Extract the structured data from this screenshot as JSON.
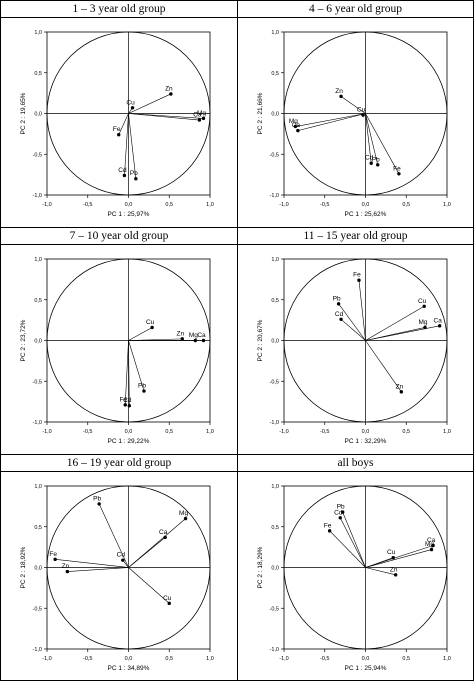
{
  "chart_data": [
    {
      "type": "scatter",
      "title": "1 – 3 year old group",
      "xlabel": "PC 1 : 25,97%",
      "ylabel": "PC 2 : 19,65%",
      "xlim": [
        -1.0,
        1.0
      ],
      "ylim": [
        -1.0,
        1.0
      ],
      "xticks": [
        "-1,0",
        "-0,5",
        "0,0",
        "0,5",
        "1,0"
      ],
      "yticks": [
        "1,0",
        "0,5",
        "0,0",
        "-0,5",
        "-1,0"
      ],
      "unit_circle": true,
      "points": [
        {
          "label": "Cu",
          "x": 0.05,
          "y": 0.07
        },
        {
          "label": "Zn",
          "x": 0.52,
          "y": 0.24
        },
        {
          "label": "Mg",
          "x": 0.92,
          "y": -0.06
        },
        {
          "label": "Ca",
          "x": 0.87,
          "y": -0.08
        },
        {
          "label": "Fe",
          "x": -0.12,
          "y": -0.26
        },
        {
          "label": "Cd",
          "x": -0.05,
          "y": -0.76
        },
        {
          "label": "Pb",
          "x": 0.09,
          "y": -0.8
        }
      ]
    },
    {
      "type": "scatter",
      "title": "4 – 6 year old group",
      "xlabel": "PC 1 : 25,62%",
      "ylabel": "PC 2 : 21,66%",
      "xlim": [
        -1.0,
        1.0
      ],
      "ylim": [
        -1.0,
        1.0
      ],
      "xticks": [
        "-1,0",
        "-0,5",
        "0,0",
        "0,5",
        "1,0"
      ],
      "yticks": [
        "1,0",
        "0,5",
        "0,0",
        "-0,5",
        "-1,0"
      ],
      "unit_circle": true,
      "points": [
        {
          "label": "Zn",
          "x": -0.3,
          "y": 0.21
        },
        {
          "label": "Cu",
          "x": -0.03,
          "y": -0.02
        },
        {
          "label": "Mg",
          "x": -0.86,
          "y": -0.16
        },
        {
          "label": "Ca",
          "x": -0.83,
          "y": -0.21
        },
        {
          "label": "Pb",
          "x": 0.15,
          "y": -0.63
        },
        {
          "label": "Cd",
          "x": 0.07,
          "y": -0.61
        },
        {
          "label": "Fe",
          "x": 0.41,
          "y": -0.74
        }
      ]
    },
    {
      "type": "scatter",
      "title": "7 – 10 year old group",
      "xlabel": "PC 1 : 29,22%",
      "ylabel": "PC 2 : 23,72%",
      "xlim": [
        -1.0,
        1.0
      ],
      "ylim": [
        -1.0,
        1.0
      ],
      "xticks": [
        "-1,0",
        "-0,5",
        "0,0",
        "0,5",
        "1,0"
      ],
      "yticks": [
        "1,0",
        "0,5",
        "0,0",
        "-0,5",
        "-1,0"
      ],
      "unit_circle": true,
      "points": [
        {
          "label": "Cu",
          "x": 0.29,
          "y": 0.16
        },
        {
          "label": "Zn",
          "x": 0.66,
          "y": 0.02
        },
        {
          "label": "Mg",
          "x": 0.82,
          "y": 0.0
        },
        {
          "label": "Ca",
          "x": 0.92,
          "y": 0.0
        },
        {
          "label": "Pb",
          "x": 0.19,
          "y": -0.62
        },
        {
          "label": "Fe",
          "x": -0.04,
          "y": -0.79
        },
        {
          "label": "Cd",
          "x": 0.01,
          "y": -0.8
        }
      ]
    },
    {
      "type": "scatter",
      "title": "11 – 15 year old group",
      "xlabel": "PC 1 : 32,29%",
      "ylabel": "PC 2 : 20,67%",
      "xlim": [
        -1.0,
        1.0
      ],
      "ylim": [
        -1.0,
        1.0
      ],
      "xticks": [
        "-1,0",
        "-0,5",
        "0,0",
        "0,5",
        "1,0"
      ],
      "yticks": [
        "1,0",
        "0,5",
        "0,0",
        "-0,5",
        "-1,0"
      ],
      "unit_circle": true,
      "points": [
        {
          "label": "Fe",
          "x": -0.08,
          "y": 0.74
        },
        {
          "label": "Pb",
          "x": -0.33,
          "y": 0.45
        },
        {
          "label": "Cd",
          "x": -0.3,
          "y": 0.26
        },
        {
          "label": "Cu",
          "x": 0.72,
          "y": 0.42
        },
        {
          "label": "Mg",
          "x": 0.73,
          "y": 0.16
        },
        {
          "label": "Ca",
          "x": 0.91,
          "y": 0.18
        },
        {
          "label": "Zn",
          "x": 0.44,
          "y": -0.63
        }
      ]
    },
    {
      "type": "scatter",
      "title": "16 – 19 year old group",
      "xlabel": "PC 1 : 34,89%",
      "ylabel": "PC 2 : 18,92%",
      "xlim": [
        -1.0,
        1.0
      ],
      "ylim": [
        -1.0,
        1.0
      ],
      "xticks": [
        "-1,0",
        "-0,5",
        "0,0",
        "0,5",
        "1,0"
      ],
      "yticks": [
        "1,0",
        "0,5",
        "0,0",
        "-0,5",
        "-1,0"
      ],
      "unit_circle": true,
      "points": [
        {
          "label": "Pb",
          "x": -0.36,
          "y": 0.78
        },
        {
          "label": "Mg",
          "x": 0.7,
          "y": 0.6
        },
        {
          "label": "Ca",
          "x": 0.45,
          "y": 0.37
        },
        {
          "label": "Cd",
          "x": -0.07,
          "y": 0.09
        },
        {
          "label": "Fe",
          "x": -0.9,
          "y": 0.1
        },
        {
          "label": "Zn",
          "x": -0.75,
          "y": -0.05
        },
        {
          "label": "Cu",
          "x": 0.5,
          "y": -0.44
        }
      ]
    },
    {
      "type": "scatter",
      "title": "all boys",
      "xlabel": "PC 1 : 25,94%",
      "ylabel": "PC 2 : 18,29%",
      "xlim": [
        -1.0,
        1.0
      ],
      "ylim": [
        -1.0,
        1.0
      ],
      "xticks": [
        "-1,0",
        "-0,5",
        "0,0",
        "0,5",
        "1,0"
      ],
      "yticks": [
        "1,0",
        "0,5",
        "0,0",
        "-0,5",
        "-1,0"
      ],
      "unit_circle": true,
      "points": [
        {
          "label": "Pb",
          "x": -0.28,
          "y": 0.68
        },
        {
          "label": "Cd",
          "x": -0.31,
          "y": 0.61
        },
        {
          "label": "Fe",
          "x": -0.44,
          "y": 0.45
        },
        {
          "label": "Cu",
          "x": 0.34,
          "y": 0.12
        },
        {
          "label": "Ca",
          "x": 0.83,
          "y": 0.27
        },
        {
          "label": "Mg",
          "x": 0.81,
          "y": 0.22
        },
        {
          "label": "Zn",
          "x": 0.37,
          "y": -0.09
        }
      ]
    }
  ]
}
